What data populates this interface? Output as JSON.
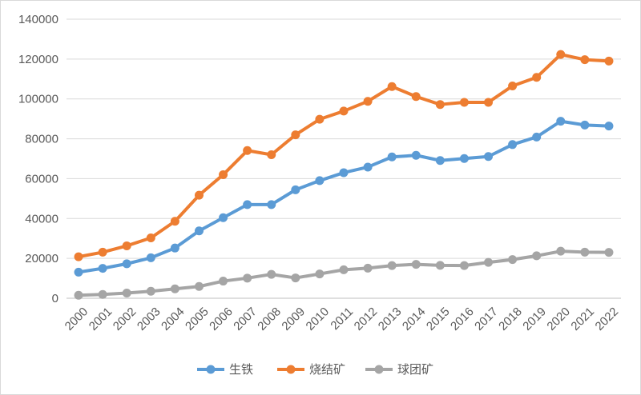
{
  "chart_data": {
    "type": "line",
    "title": "",
    "xlabel": "",
    "ylabel": "",
    "ylim": [
      0,
      140000
    ],
    "yticks": [
      "0",
      "20000",
      "40000",
      "60000",
      "80000",
      "100000",
      "120000",
      "140000"
    ],
    "grid": true,
    "legend_position": "bottom",
    "categories": [
      "2000",
      "2001",
      "2002",
      "2003",
      "2004",
      "2005",
      "2006",
      "2007",
      "2008",
      "2009",
      "2010",
      "2011",
      "2012",
      "2013",
      "2014",
      "2015",
      "2016",
      "2017",
      "2018",
      "2019",
      "2020",
      "2021",
      "2022"
    ],
    "series": [
      {
        "name": "生铁",
        "color": "#5b9bd5",
        "values": [
          13100,
          15000,
          17300,
          20300,
          25200,
          33800,
          40400,
          47000,
          47000,
          54400,
          59000,
          63000,
          65800,
          70900,
          71700,
          69100,
          70100,
          71100,
          77100,
          80900,
          88800,
          86900,
          86400
        ]
      },
      {
        "name": "烧结矿",
        "color": "#ed7d31",
        "values": [
          20800,
          23100,
          26300,
          30300,
          38600,
          51700,
          62000,
          74100,
          72000,
          82000,
          89800,
          93900,
          98800,
          106200,
          101200,
          97200,
          98300,
          98300,
          106500,
          110800,
          122300,
          119700,
          119000
        ]
      },
      {
        "name": "球团矿",
        "color": "#a5a5a5",
        "values": [
          1500,
          1900,
          2600,
          3500,
          4700,
          5900,
          8600,
          10100,
          12000,
          10200,
          12200,
          14300,
          15100,
          16400,
          17000,
          16500,
          16400,
          18000,
          19400,
          21300,
          23600,
          23100,
          23000
        ]
      }
    ]
  }
}
